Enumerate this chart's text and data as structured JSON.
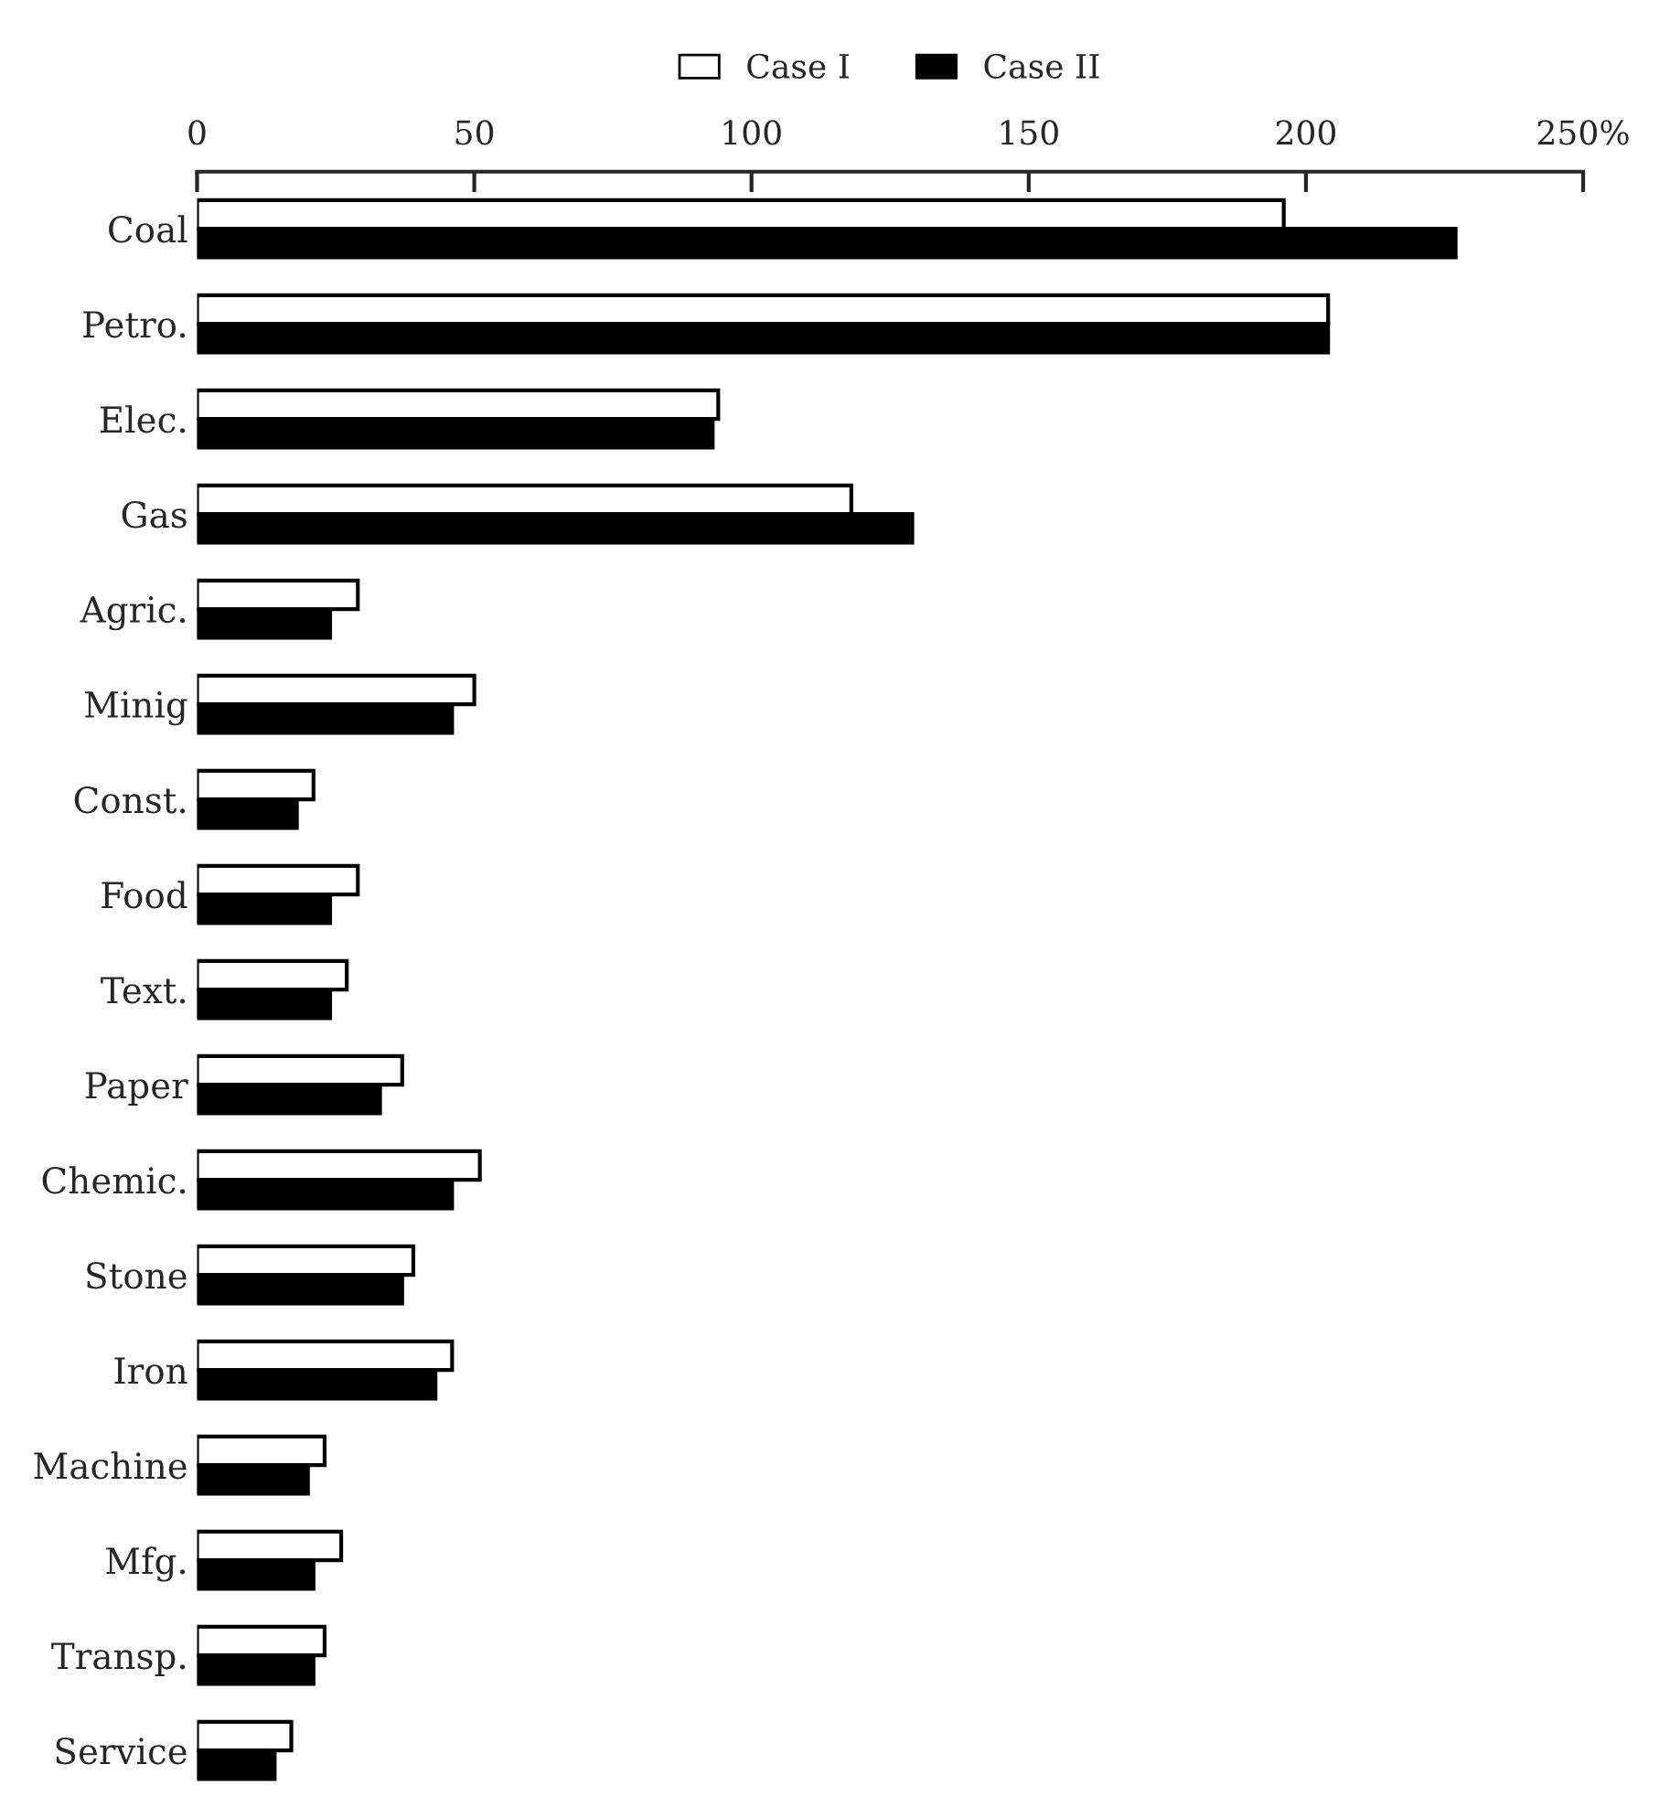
{
  "chart_data": {
    "type": "bar",
    "orientation": "horizontal",
    "categories": [
      "Coal",
      "Petro.",
      "Elec.",
      "Gas",
      "Agric.",
      "Minig",
      "Const.",
      "Food",
      "Text.",
      "Paper",
      "Chemic.",
      "Stone",
      "Iron",
      "Machine",
      "Mfg.",
      "Transp.",
      "Service"
    ],
    "series": [
      {
        "name": "Case I",
        "color": "#ffffff",
        "values": [
          196,
          204,
          94,
          118,
          29,
          50,
          21,
          29,
          27,
          37,
          51,
          39,
          46,
          23,
          26,
          23,
          17
        ]
      },
      {
        "name": "Case II",
        "color": "#000000",
        "values": [
          227,
          204,
          93,
          129,
          24,
          46,
          18,
          24,
          24,
          33,
          46,
          37,
          43,
          20,
          21,
          21,
          14
        ]
      }
    ],
    "xlim": [
      0,
      250
    ],
    "xticks": [
      0,
      50,
      100,
      150,
      200,
      {
        "value": 250,
        "label": "250%"
      }
    ],
    "grid": false,
    "legend": "top"
  }
}
